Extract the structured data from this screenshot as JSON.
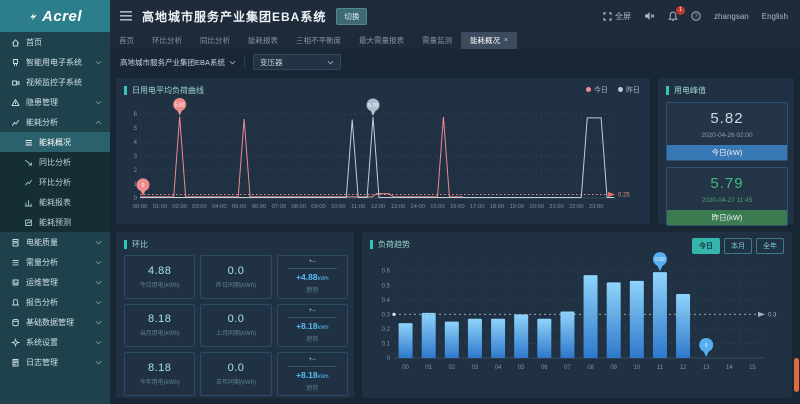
{
  "header": {
    "logo": "Acrel",
    "title": "高地城市服务产业集团EBA系统",
    "switch_label": "切换",
    "fullscreen_label": "全屏",
    "notification_count": "1",
    "username": "zhangsan",
    "language": "English"
  },
  "sidebar": {
    "items": [
      {
        "label": "首页",
        "icon": "home"
      },
      {
        "label": "智能用电子系统",
        "icon": "power",
        "chevron": "down"
      },
      {
        "label": "视频监控子系统",
        "icon": "video"
      },
      {
        "label": "隐患管理",
        "icon": "warning",
        "chevron": "down"
      },
      {
        "label": "能耗分析",
        "icon": "analysis",
        "chevron": "up",
        "expanded": true,
        "children": [
          {
            "label": "能耗概况",
            "icon": "list",
            "active": true
          },
          {
            "label": "同比分析",
            "icon": "trenddown"
          },
          {
            "label": "环比分析",
            "icon": "trendup"
          },
          {
            "label": "能耗报表",
            "icon": "report"
          },
          {
            "label": "能耗预测",
            "icon": "forecast"
          }
        ]
      },
      {
        "label": "电能质量",
        "icon": "quality",
        "chevron": "down"
      },
      {
        "label": "需量分析",
        "icon": "demand",
        "chevron": "down"
      },
      {
        "label": "运维管理",
        "icon": "ops",
        "chevron": "down"
      },
      {
        "label": "报告分析",
        "icon": "alarm",
        "chevron": "down"
      },
      {
        "label": "基础数据管理",
        "icon": "database",
        "chevron": "down"
      },
      {
        "label": "系统设置",
        "icon": "settings",
        "chevron": "down"
      },
      {
        "label": "日志管理",
        "icon": "log",
        "chevron": "down"
      }
    ]
  },
  "tabs": [
    {
      "label": "首页"
    },
    {
      "label": "环比分析"
    },
    {
      "label": "同比分析"
    },
    {
      "label": "能耗报表"
    },
    {
      "label": "三相不平衡度"
    },
    {
      "label": "最大需量报表"
    },
    {
      "label": "需量监测"
    },
    {
      "label": "能耗概况",
      "active": true,
      "closable": true
    }
  ],
  "filters": {
    "org": "高地城市服务产业集团EBA系统",
    "device": "变压器"
  },
  "peak_panel": {
    "title": "用电峰值",
    "cards": [
      {
        "value": "5.82",
        "time": "2020-04-28 02:00",
        "label": "今日(kW)",
        "value_color": "#cdd9de",
        "time_color": "#8aa0b0",
        "foot_color": "#3878b4"
      },
      {
        "value": "5.79",
        "time": "2020-04-27 11:45",
        "label": "昨日(kW)",
        "value_color": "#41b97e",
        "time_color": "#48a674",
        "foot_color": "#3a7b50"
      }
    ]
  },
  "ratio_panel": {
    "title": "环比",
    "rows": [
      {
        "current": {
          "value": "4.88",
          "label": "今日用电(kWh)"
        },
        "previous": {
          "value": "0.0",
          "label": "昨日同期(kWh)"
        },
        "trend": {
          "pct": "+--",
          "delta": "+4.88",
          "unit": "kWh",
          "label": "趋势"
        }
      },
      {
        "current": {
          "value": "8.18",
          "label": "当月用电(kWh)"
        },
        "previous": {
          "value": "0.0",
          "label": "上月同期(kWh)"
        },
        "trend": {
          "pct": "+--",
          "delta": "+8.18",
          "unit": "kWh",
          "label": "趋势"
        }
      },
      {
        "current": {
          "value": "8.18",
          "label": "今年用电(kWh)"
        },
        "previous": {
          "value": "0.0",
          "label": "去年同期(kWh)"
        },
        "trend": {
          "pct": "+--",
          "delta": "+8.18",
          "unit": "kWh",
          "label": "趋势"
        }
      }
    ]
  },
  "chart_data": [
    {
      "type": "line",
      "title": "日用电平均负荷曲线",
      "legend": [
        "今日",
        "昨日"
      ],
      "ylim": [
        0,
        6
      ],
      "y_ticks": [
        0,
        1,
        2,
        3,
        4,
        5,
        6
      ],
      "x_ticks": [
        "00:00",
        "01:00",
        "02:00",
        "03:00",
        "04:00",
        "05:00",
        "06:00",
        "07:00",
        "08:00",
        "09:00",
        "10:00",
        "11:00",
        "12:00",
        "13:00",
        "14:00",
        "15:00",
        "16:00",
        "17:00",
        "18:00",
        "19:00",
        "20:00",
        "21:00",
        "22:00",
        "23:00"
      ],
      "series": [
        {
          "name": "今日",
          "color": "#ef8b8b",
          "points": [
            [
              0,
              0.08
            ],
            [
              1.7,
              0.08
            ],
            [
              2,
              5.82
            ],
            [
              2.3,
              0.08
            ],
            [
              4.95,
              0.08
            ],
            [
              5.25,
              5.65
            ],
            [
              5.55,
              0.08
            ],
            [
              11.7,
              0.08
            ],
            [
              11.95,
              0.32
            ],
            [
              12.55,
              0.3
            ],
            [
              12.8,
              0.08
            ],
            [
              15.0,
              0.08
            ],
            [
              15.3,
              5.8
            ],
            [
              15.6,
              0.08
            ],
            [
              16.3,
              0.08
            ]
          ]
        },
        {
          "name": "昨日",
          "color": "#c2ced6",
          "points": [
            [
              0,
              0.04
            ],
            [
              10.4,
              0.04
            ],
            [
              10.7,
              5.6
            ],
            [
              11.0,
              0.04
            ],
            [
              11.45,
              0.04
            ],
            [
              11.75,
              5.79
            ],
            [
              12.05,
              0.04
            ],
            [
              22.25,
              0.04
            ],
            [
              22.55,
              5.72
            ],
            [
              23.25,
              5.72
            ],
            [
              23.55,
              0.04
            ],
            [
              23.9,
              0.04
            ]
          ]
        }
      ],
      "markers": [
        {
          "x": 2,
          "y": 5.82,
          "label": "5.82",
          "color": "#ef8b8b"
        },
        {
          "x": 11.75,
          "y": 5.79,
          "label": "5.79",
          "color": "#aabfcb"
        },
        {
          "x": 0.15,
          "y": 0.08,
          "label": "0",
          "color": "#ef8b8b"
        }
      ],
      "baseline": {
        "value": 0.25,
        "label": "0.25",
        "color": "#e98d8d"
      }
    },
    {
      "type": "bar",
      "title": "负荷趋势",
      "tabs": [
        {
          "label": "今日",
          "active": true
        },
        {
          "label": "本月"
        },
        {
          "label": "全年"
        }
      ],
      "categories": [
        "00",
        "01",
        "02",
        "03",
        "04",
        "05",
        "06",
        "07",
        "08",
        "09",
        "10",
        "11",
        "12",
        "13",
        "14",
        "15"
      ],
      "values": [
        0.24,
        0.31,
        0.25,
        0.27,
        0.27,
        0.3,
        0.27,
        0.32,
        0.57,
        0.52,
        0.53,
        0.59,
        0.44,
        0,
        null,
        null
      ],
      "ylim": [
        0,
        0.6
      ],
      "y_ticks": [
        0,
        0.1,
        0.2,
        0.3,
        0.4,
        0.5,
        0.6
      ],
      "avg_line": {
        "value": 0.3,
        "label": "0.3"
      },
      "markers": [
        {
          "index": 11,
          "label": "0.59"
        },
        {
          "index": 13,
          "label": "0"
        }
      ],
      "bar_color_top": "#8fd4fb",
      "bar_color_bottom": "#2e78cc",
      "marker_color": "#56aef0"
    }
  ]
}
